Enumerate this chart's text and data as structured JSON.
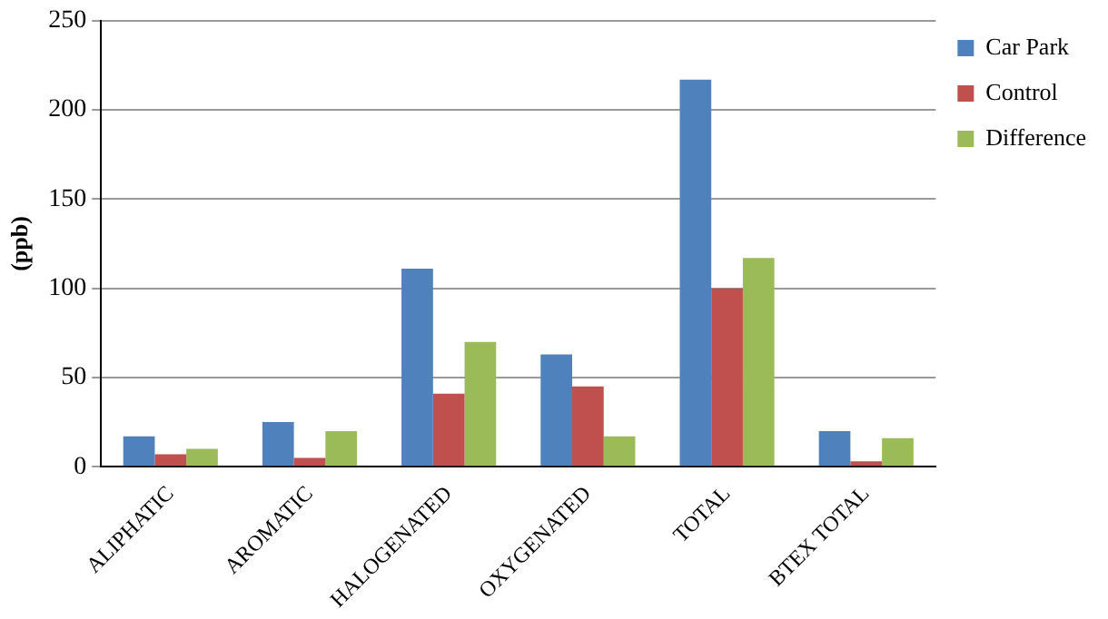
{
  "chart_data": {
    "type": "bar",
    "ylabel": "(ppb)",
    "categories": [
      "ALIPHATIC",
      "AROMATIC",
      "HALOGENATED",
      "OXYGENATED",
      "TOTAL",
      "BTEX TOTAL"
    ],
    "series": [
      {
        "name": "Car Park",
        "color": "#4f81bd",
        "values": [
          17,
          25,
          111,
          63,
          217,
          20
        ]
      },
      {
        "name": "Control",
        "color": "#c0504d",
        "values": [
          7,
          5,
          41,
          45,
          100,
          3
        ]
      },
      {
        "name": "Difference",
        "color": "#9bbb59",
        "values": [
          10,
          20,
          70,
          17,
          117,
          16
        ]
      }
    ],
    "ylim": [
      0,
      250
    ],
    "yticks": [
      0,
      50,
      100,
      150,
      200,
      250
    ],
    "grid": "y",
    "legend": "top right"
  }
}
